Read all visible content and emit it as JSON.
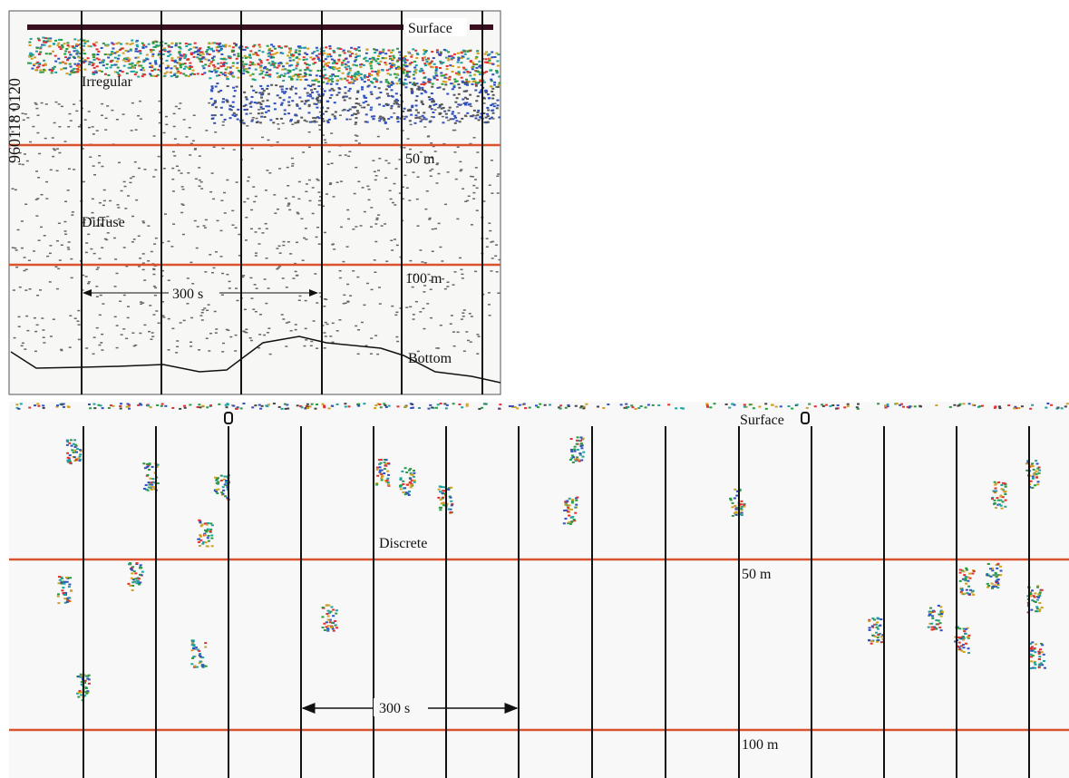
{
  "top_panel": {
    "side_label": "960118 0120",
    "surface": "Surface",
    "irregular": "Irregular",
    "diffuse": "Diffuse",
    "depth_50": "50 m",
    "depth_100": "100 m",
    "duration": "300 s",
    "bottom": "Bottom"
  },
  "bottom_panel": {
    "surface": "Surface",
    "discrete": "Discrete",
    "depth_50": "50 m",
    "depth_100": "100 m",
    "duration": "300 s"
  }
}
